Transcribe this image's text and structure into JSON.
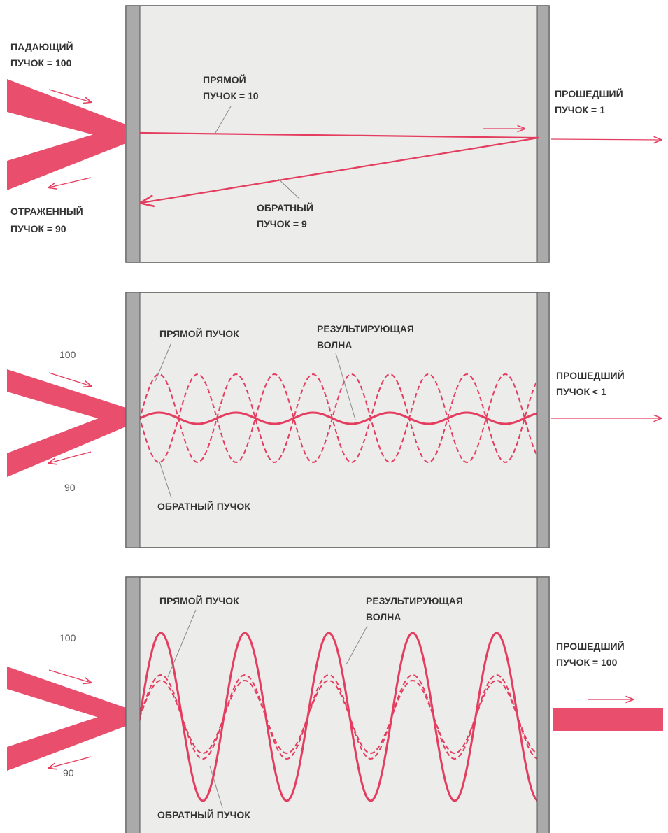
{
  "panels": [
    {
      "labels": [
        [
          "ПАДАЮЩИЙ",
          "ПУЧОК = 100"
        ],
        [
          "ПРЯМОЙ",
          "ПУЧОК = 10"
        ],
        [
          "ПРОШЕДШИЙ",
          "ПУЧОК = 1"
        ],
        [
          "ОТРАЖЕННЫЙ",
          "ПУЧОК = 90"
        ],
        [
          "ОБРАТНЫЙ",
          "ПУЧОК = 9"
        ]
      ]
    },
    {
      "labels": [
        [
          "100"
        ],
        [
          "90"
        ],
        [
          "ПРЯМОЙ ПУЧОК"
        ],
        [
          "РЕЗУЛЬТИРУЮЩАЯ",
          "ВОЛНА"
        ],
        [
          "ПРОШЕДШИЙ",
          "ПУЧОК < 1"
        ],
        [
          "ОБРАТНЫЙ ПУЧОК"
        ]
      ]
    },
    {
      "labels": [
        [
          "100"
        ],
        [
          "90"
        ],
        [
          "ПРЯМОЙ ПУЧОК"
        ],
        [
          "РЕЗУЛЬТИРУЮЩАЯ",
          "ВОЛНА"
        ],
        [
          "ПРОШЕДШИЙ",
          "ПУЧОК = 100"
        ],
        [
          "ОБРАТНЫЙ ПУЧОК"
        ]
      ]
    }
  ]
}
